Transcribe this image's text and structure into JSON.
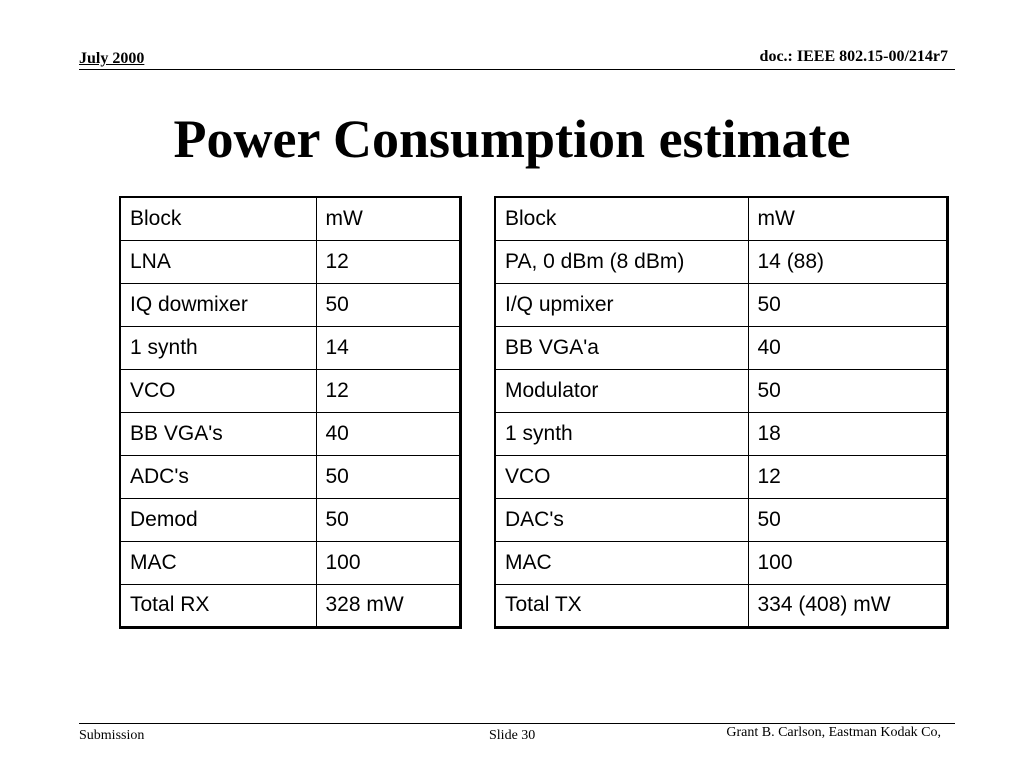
{
  "header": {
    "date": "July 2000",
    "doc_id": "doc.: IEEE 802.15-00/214r7"
  },
  "title": "Power Consumption estimate",
  "rx_table": {
    "rows": [
      [
        "Block",
        "mW"
      ],
      [
        "LNA",
        "12"
      ],
      [
        "IQ dowmixer",
        "50"
      ],
      [
        "1 synth",
        "14"
      ],
      [
        "VCO",
        "12"
      ],
      [
        "BB VGA's",
        "40"
      ],
      [
        "ADC's",
        "50"
      ],
      [
        "Demod",
        "50"
      ],
      [
        "MAC",
        "100"
      ],
      [
        "Total RX",
        "328 mW"
      ]
    ]
  },
  "tx_table": {
    "rows": [
      [
        "Block",
        "mW"
      ],
      [
        "PA, 0 dBm (8 dBm)",
        "14 (88)"
      ],
      [
        "I/Q upmixer",
        "50"
      ],
      [
        "BB VGA'a",
        "40"
      ],
      [
        "Modulator",
        "50"
      ],
      [
        "1 synth",
        "18"
      ],
      [
        "VCO",
        "12"
      ],
      [
        "DAC's",
        "50"
      ],
      [
        "MAC",
        "100"
      ],
      [
        "Total TX",
        "334 (408) mW"
      ]
    ]
  },
  "footer": {
    "left": "Submission",
    "center": "Slide 30",
    "right": "Grant B. Carlson, Eastman Kodak Co,"
  }
}
